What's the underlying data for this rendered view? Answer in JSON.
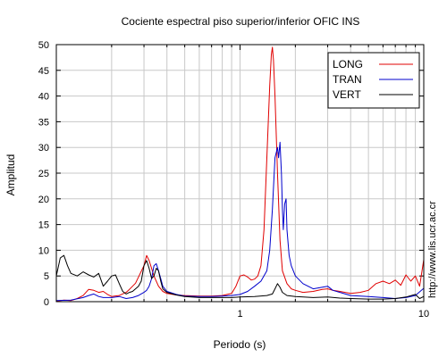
{
  "chart_data": {
    "type": "line",
    "title": "Cociente espectral piso superior/inferior  OFIC INS",
    "xlabel": "Periodo (s)",
    "ylabel": "Amplitud",
    "x_scale": "log",
    "xlim": [
      0.1,
      10
    ],
    "ylim": [
      0,
      50
    ],
    "x_tick_labels": [
      "1",
      "10"
    ],
    "y_ticks": [
      0,
      5,
      10,
      15,
      20,
      25,
      30,
      35,
      40,
      45,
      50
    ],
    "grid": true,
    "legend_position": "top-right",
    "annotation": "http://www.lis.ucr.ac.cr",
    "series": [
      {
        "name": "LONG",
        "color": "#e00000",
        "points": [
          [
            0.1,
            0.1
          ],
          [
            0.11,
            0.3
          ],
          [
            0.12,
            0.2
          ],
          [
            0.13,
            0.6
          ],
          [
            0.14,
            1.2
          ],
          [
            0.15,
            2.4
          ],
          [
            0.16,
            2.2
          ],
          [
            0.17,
            1.8
          ],
          [
            0.18,
            2.0
          ],
          [
            0.19,
            1.4
          ],
          [
            0.2,
            1.0
          ],
          [
            0.22,
            1.2
          ],
          [
            0.24,
            1.8
          ],
          [
            0.25,
            2.4
          ],
          [
            0.27,
            3.6
          ],
          [
            0.3,
            7.0
          ],
          [
            0.31,
            9.0
          ],
          [
            0.32,
            8.0
          ],
          [
            0.34,
            5.0
          ],
          [
            0.36,
            3.0
          ],
          [
            0.38,
            2.0
          ],
          [
            0.4,
            1.6
          ],
          [
            0.45,
            1.3
          ],
          [
            0.5,
            1.2
          ],
          [
            0.6,
            1.1
          ],
          [
            0.7,
            1.1
          ],
          [
            0.8,
            1.2
          ],
          [
            0.9,
            1.6
          ],
          [
            0.95,
            3.0
          ],
          [
            1.0,
            5.0
          ],
          [
            1.05,
            5.2
          ],
          [
            1.1,
            4.8
          ],
          [
            1.15,
            4.2
          ],
          [
            1.2,
            4.4
          ],
          [
            1.25,
            5.0
          ],
          [
            1.3,
            7.0
          ],
          [
            1.35,
            14.0
          ],
          [
            1.4,
            28.0
          ],
          [
            1.45,
            42.0
          ],
          [
            1.48,
            48.0
          ],
          [
            1.5,
            49.5
          ],
          [
            1.52,
            47.0
          ],
          [
            1.55,
            40.0
          ],
          [
            1.6,
            25.0
          ],
          [
            1.65,
            12.0
          ],
          [
            1.7,
            6.0
          ],
          [
            1.8,
            3.5
          ],
          [
            1.9,
            2.5
          ],
          [
            2.0,
            2.2
          ],
          [
            2.2,
            1.8
          ],
          [
            2.5,
            2.0
          ],
          [
            2.8,
            2.4
          ],
          [
            3.0,
            2.5
          ],
          [
            3.2,
            2.2
          ],
          [
            3.5,
            2.0
          ],
          [
            4.0,
            1.6
          ],
          [
            4.5,
            1.8
          ],
          [
            5.0,
            2.2
          ],
          [
            5.5,
            3.5
          ],
          [
            6.0,
            4.0
          ],
          [
            6.5,
            3.5
          ],
          [
            7.0,
            4.2
          ],
          [
            7.5,
            3.2
          ],
          [
            8.0,
            5.2
          ],
          [
            8.5,
            4.0
          ],
          [
            9.0,
            5.0
          ],
          [
            9.5,
            3.0
          ],
          [
            10.0,
            8.2
          ]
        ]
      },
      {
        "name": "TRAN",
        "color": "#0000cc",
        "points": [
          [
            0.1,
            0.2
          ],
          [
            0.12,
            0.3
          ],
          [
            0.14,
            0.8
          ],
          [
            0.15,
            1.2
          ],
          [
            0.16,
            1.5
          ],
          [
            0.17,
            1.0
          ],
          [
            0.18,
            0.8
          ],
          [
            0.2,
            0.8
          ],
          [
            0.22,
            1.0
          ],
          [
            0.24,
            0.6
          ],
          [
            0.26,
            0.8
          ],
          [
            0.28,
            1.2
          ],
          [
            0.3,
            1.8
          ],
          [
            0.31,
            2.2
          ],
          [
            0.32,
            3.0
          ],
          [
            0.33,
            4.5
          ],
          [
            0.34,
            7.0
          ],
          [
            0.35,
            7.4
          ],
          [
            0.36,
            6.0
          ],
          [
            0.37,
            4.5
          ],
          [
            0.38,
            3.0
          ],
          [
            0.4,
            2.0
          ],
          [
            0.45,
            1.4
          ],
          [
            0.5,
            1.1
          ],
          [
            0.6,
            1.0
          ],
          [
            0.7,
            1.0
          ],
          [
            0.8,
            1.1
          ],
          [
            0.9,
            1.2
          ],
          [
            1.0,
            1.4
          ],
          [
            1.1,
            2.0
          ],
          [
            1.2,
            3.0
          ],
          [
            1.3,
            4.0
          ],
          [
            1.4,
            6.0
          ],
          [
            1.45,
            10.0
          ],
          [
            1.5,
            18.0
          ],
          [
            1.55,
            28.0
          ],
          [
            1.6,
            30.0
          ],
          [
            1.62,
            28.0
          ],
          [
            1.65,
            31.0
          ],
          [
            1.68,
            25.0
          ],
          [
            1.7,
            18.0
          ],
          [
            1.72,
            14.0
          ],
          [
            1.75,
            19.0
          ],
          [
            1.78,
            20.0
          ],
          [
            1.8,
            14.0
          ],
          [
            1.85,
            9.0
          ],
          [
            1.9,
            7.0
          ],
          [
            2.0,
            5.0
          ],
          [
            2.2,
            3.5
          ],
          [
            2.5,
            2.5
          ],
          [
            3.0,
            3.0
          ],
          [
            3.2,
            2.2
          ],
          [
            3.5,
            1.8
          ],
          [
            4.0,
            1.2
          ],
          [
            5.0,
            1.0
          ],
          [
            6.0,
            0.8
          ],
          [
            7.0,
            0.6
          ],
          [
            8.0,
            0.8
          ],
          [
            9.0,
            1.2
          ],
          [
            10.0,
            2.6
          ]
        ]
      },
      {
        "name": "VERT",
        "color": "#000000",
        "points": [
          [
            0.1,
            5.0
          ],
          [
            0.105,
            8.5
          ],
          [
            0.11,
            9.0
          ],
          [
            0.115,
            7.0
          ],
          [
            0.12,
            5.5
          ],
          [
            0.13,
            5.0
          ],
          [
            0.14,
            5.8
          ],
          [
            0.15,
            5.2
          ],
          [
            0.16,
            4.8
          ],
          [
            0.17,
            5.5
          ],
          [
            0.18,
            3.0
          ],
          [
            0.19,
            4.0
          ],
          [
            0.2,
            5.0
          ],
          [
            0.21,
            5.2
          ],
          [
            0.22,
            3.5
          ],
          [
            0.23,
            2.0
          ],
          [
            0.24,
            1.5
          ],
          [
            0.25,
            1.8
          ],
          [
            0.26,
            2.0
          ],
          [
            0.27,
            2.5
          ],
          [
            0.28,
            3.0
          ],
          [
            0.29,
            4.0
          ],
          [
            0.3,
            7.0
          ],
          [
            0.31,
            8.0
          ],
          [
            0.32,
            6.5
          ],
          [
            0.33,
            4.5
          ],
          [
            0.34,
            5.0
          ],
          [
            0.35,
            6.5
          ],
          [
            0.36,
            6.0
          ],
          [
            0.37,
            4.0
          ],
          [
            0.38,
            2.5
          ],
          [
            0.4,
            1.8
          ],
          [
            0.45,
            1.3
          ],
          [
            0.5,
            1.0
          ],
          [
            0.6,
            0.8
          ],
          [
            0.7,
            0.8
          ],
          [
            0.8,
            0.8
          ],
          [
            0.9,
            0.8
          ],
          [
            1.0,
            0.9
          ],
          [
            1.2,
            1.0
          ],
          [
            1.4,
            1.2
          ],
          [
            1.5,
            1.5
          ],
          [
            1.55,
            2.5
          ],
          [
            1.6,
            3.5
          ],
          [
            1.65,
            2.8
          ],
          [
            1.7,
            1.8
          ],
          [
            1.8,
            1.2
          ],
          [
            2.0,
            1.0
          ],
          [
            2.5,
            0.8
          ],
          [
            3.0,
            0.9
          ],
          [
            3.5,
            0.7
          ],
          [
            4.0,
            0.6
          ],
          [
            5.0,
            0.5
          ],
          [
            6.0,
            0.5
          ],
          [
            7.0,
            0.6
          ],
          [
            8.0,
            0.9
          ],
          [
            9.0,
            1.4
          ],
          [
            9.5,
            0.6
          ],
          [
            10.0,
            1.0
          ]
        ]
      }
    ]
  }
}
